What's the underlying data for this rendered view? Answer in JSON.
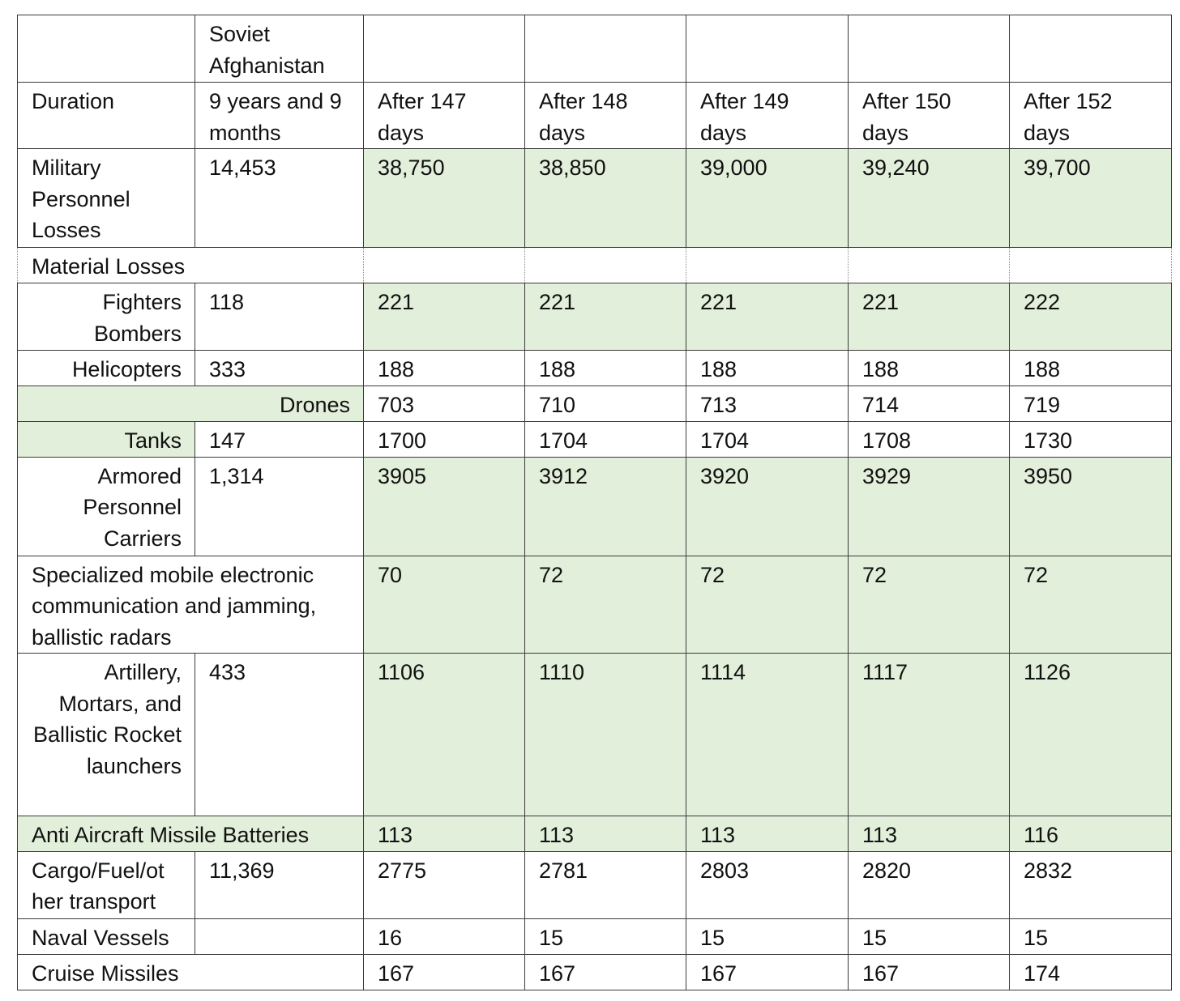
{
  "header": {
    "col0": "",
    "col1": "Soviet Afghanistan",
    "col2": "",
    "col3": "",
    "col4": "",
    "col5": "",
    "col6": ""
  },
  "duration": {
    "label": "Duration",
    "soviet": "9 years and 9 months",
    "values": [
      "After 147 days",
      "After 148 days",
      "After 149 days",
      "After 150 days",
      "After 152 days"
    ]
  },
  "military": {
    "label": "Military Personnel Losses",
    "soviet": "14,453",
    "values": [
      "38,750",
      "38,850",
      "39,000",
      "39,240",
      "39,700"
    ]
  },
  "material_header": "Material Losses",
  "rows": {
    "fighters": {
      "label": "Fighters Bombers",
      "soviet": "118",
      "values": [
        "221",
        "221",
        "221",
        "221",
        "222"
      ]
    },
    "helicopters": {
      "label": "Helicopters",
      "soviet": "333",
      "values": [
        "188",
        "188",
        "188",
        "188",
        "188"
      ]
    },
    "drones": {
      "label": "Drones",
      "soviet": "",
      "values": [
        "703",
        "710",
        "713",
        "714",
        "719"
      ]
    },
    "tanks": {
      "label": "Tanks",
      "soviet": "147",
      "values": [
        "1700",
        "1704",
        "1704",
        "1708",
        "1730"
      ]
    },
    "apc": {
      "label": "Armored Personnel Carriers",
      "soviet": "1,314",
      "values": [
        "3905",
        "3912",
        "3920",
        "3929",
        "3950"
      ]
    },
    "specialized": {
      "label": "Specialized mobile electronic communication and jamming, ballistic radars",
      "values": [
        "70",
        "72",
        "72",
        "72",
        "72"
      ]
    },
    "artillery": {
      "label": "Artillery, Mortars, and Ballistic Rocket launchers",
      "soviet": "433",
      "values": [
        "1106",
        "1110",
        "1114",
        "1117",
        "1126"
      ]
    },
    "antiair": {
      "label": "Anti Aircraft Missile Batteries",
      "values": [
        "113",
        "113",
        "113",
        "113",
        "116"
      ]
    },
    "cargo": {
      "label": "Cargo/Fuel/ot her transport",
      "soviet": "11,369",
      "values": [
        "2775",
        "2781",
        "2803",
        "2820",
        "2832"
      ]
    },
    "naval": {
      "label": "Naval Vessels",
      "soviet": "",
      "values": [
        "16",
        "15",
        "15",
        "15",
        "15"
      ]
    },
    "cruise": {
      "label": "Cruise Missiles",
      "values": [
        "167",
        "167",
        "167",
        "167",
        "174"
      ]
    }
  },
  "colors": {
    "highlight": "#e2efda",
    "border": "#3a3a3a"
  }
}
